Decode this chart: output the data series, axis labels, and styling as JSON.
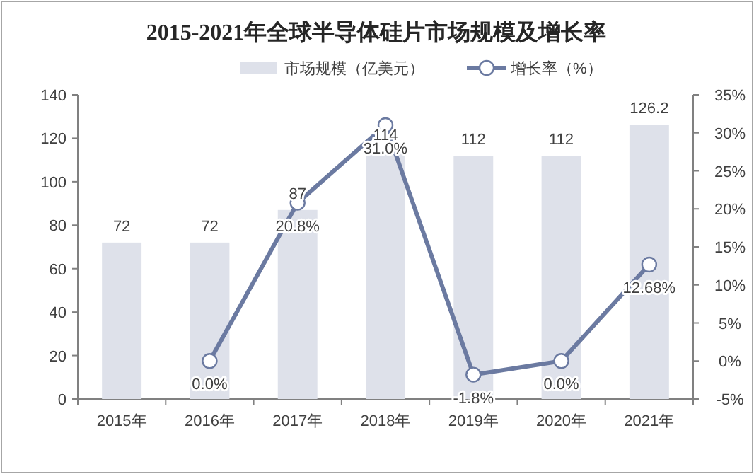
{
  "chart_data": {
    "type": "bar",
    "title": "2015-2021年全球半导体硅片市场规模及增长率",
    "categories": [
      "2015年",
      "2016年",
      "2017年",
      "2018年",
      "2019年",
      "2020年",
      "2021年"
    ],
    "series": [
      {
        "name": "市场规模（亿美元）",
        "color": "#dee1ea",
        "values": [
          72,
          72,
          87,
          114,
          112,
          112,
          126.2
        ],
        "value_labels": [
          "72",
          "72",
          "87",
          "114",
          "112",
          "112",
          "126.2"
        ]
      },
      {
        "name": "增长率（%）",
        "type": "line",
        "axis": "y2",
        "color": "#6b7aa1",
        "marker": "circle",
        "values": [
          null,
          0.0,
          20.8,
          31.0,
          -1.8,
          0.0,
          12.68
        ],
        "value_labels": [
          null,
          "0.0%",
          "20.8%",
          "31.0%",
          "-1.8%",
          "0.0%",
          "12.68%"
        ]
      }
    ],
    "ylim": [
      0,
      140
    ],
    "yticks": [
      0,
      20,
      40,
      60,
      80,
      100,
      120,
      140
    ],
    "y2lim": [
      -5,
      35
    ],
    "y2ticks": [
      {
        "value": -5,
        "label": "-5%"
      },
      {
        "value": 0,
        "label": "0%"
      },
      {
        "value": 5,
        "label": "5%"
      },
      {
        "value": 10,
        "label": "10%"
      },
      {
        "value": 15,
        "label": "15%"
      },
      {
        "value": 20,
        "label": "20%"
      },
      {
        "value": 25,
        "label": "25%"
      },
      {
        "value": 30,
        "label": "30%"
      },
      {
        "value": 35,
        "label": "35%"
      }
    ],
    "legend": "top",
    "grid": false
  }
}
